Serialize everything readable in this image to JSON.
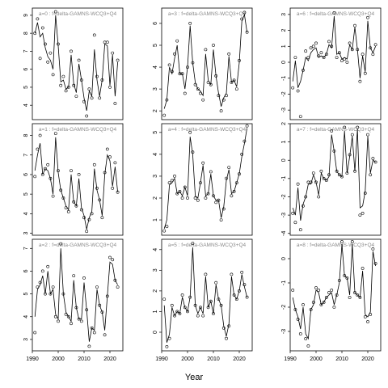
{
  "chart_data": {
    "type": "line",
    "xlabel": "Year",
    "x_ticks": [
      1990,
      2000,
      2010,
      2020
    ],
    "xlim": [
      1990,
      2025
    ],
    "panels": [
      {
        "title": "a=0  :  f=delta-GAMNS-WCQ3+Q4",
        "ylim": [
          3.2,
          9.4
        ],
        "y_ticks": [
          4,
          5,
          6,
          7,
          8,
          9
        ],
        "x": [
          1991,
          1992,
          1993,
          1994,
          1995,
          1996,
          1997,
          1998,
          1999,
          2000,
          2001,
          2002,
          2003,
          2004,
          2005,
          2006,
          2007,
          2008,
          2009,
          2010,
          2011,
          2012,
          2013,
          2014,
          2015,
          2016,
          2017,
          2018,
          2019,
          2020,
          2021,
          2022,
          2023
        ],
        "points": [
          8.0,
          8.8,
          6.6,
          8.3,
          7.4,
          6.4,
          6.9,
          5.7,
          9.2,
          7.4,
          5.1,
          5.6,
          4.8,
          5.0,
          7.0,
          5.1,
          4.5,
          6.5,
          5.4,
          4.2,
          3.4,
          4.9,
          4.4,
          7.9,
          5.6,
          4.4,
          5.4,
          7.5,
          7.5,
          5.0,
          6.9,
          4.1,
          6.5
        ],
        "curve": [
          8.0,
          8.6,
          7.8,
          8.0,
          7.2,
          6.7,
          6.5,
          6.0,
          9.0,
          7.3,
          5.3,
          5.4,
          4.9,
          5.0,
          6.8,
          5.2,
          4.7,
          6.3,
          5.4,
          4.4,
          3.7,
          4.8,
          4.5,
          7.1,
          5.4,
          4.5,
          5.4,
          7.4,
          7.3,
          5.1,
          6.8,
          4.5,
          6.4
        ]
      },
      {
        "title": "a=3  :  f=delta-GAMNS-WCQ3+Q4",
        "ylim": [
          1.6,
          6.7
        ],
        "y_ticks": [
          2,
          3,
          4,
          5,
          6
        ],
        "x": [
          1991,
          1992,
          1993,
          1994,
          1995,
          1996,
          1997,
          1998,
          1999,
          2000,
          2001,
          2002,
          2003,
          2004,
          2005,
          2006,
          2007,
          2008,
          2009,
          2010,
          2011,
          2012,
          2013,
          2014,
          2015,
          2016,
          2017,
          2018,
          2019,
          2020,
          2021,
          2022,
          2023
        ],
        "points": [
          1.8,
          2.5,
          4.1,
          3.8,
          4.6,
          5.2,
          3.7,
          3.7,
          2.8,
          4.0,
          6.0,
          4.2,
          3.2,
          3.0,
          2.8,
          2.5,
          4.8,
          3.3,
          3.2,
          5.0,
          3.6,
          2.7,
          2.0,
          2.5,
          2.7,
          4.6,
          3.3,
          3.4,
          3.0,
          4.3,
          6.2,
          6.5,
          5.6
        ],
        "curve": [
          2.1,
          2.5,
          4.0,
          3.7,
          4.4,
          5.0,
          3.7,
          3.7,
          3.0,
          4.0,
          5.9,
          4.2,
          3.3,
          3.0,
          2.9,
          2.7,
          4.6,
          3.4,
          3.2,
          4.8,
          3.6,
          2.8,
          2.2,
          2.6,
          2.8,
          4.5,
          3.3,
          3.4,
          3.1,
          4.2,
          6.1,
          6.4,
          5.6
        ]
      },
      {
        "title": "a=6  :  f=delta-GAMNS-WCQ3+Q4",
        "ylim": [
          -3.6,
          3.4
        ],
        "y_ticks": [
          -3,
          -2,
          -1,
          0,
          1,
          2,
          3
        ],
        "x": [
          1991,
          1992,
          1993,
          1994,
          1995,
          1996,
          1997,
          1998,
          1999,
          2000,
          2001,
          2002,
          2003,
          2004,
          2005,
          2006,
          2007,
          2008,
          2009,
          2010,
          2011,
          2012,
          2013,
          2014,
          2015,
          2016,
          2017,
          2018,
          2019,
          2020,
          2021,
          2022,
          2023
        ],
        "points": [
          -1.6,
          0.3,
          -1.8,
          -3.4,
          -0.5,
          0.7,
          0.3,
          0.9,
          1.0,
          1.2,
          0.4,
          0.6,
          0.3,
          0.5,
          1.3,
          1.0,
          3.1,
          0.3,
          0.6,
          0.1,
          0.2,
          0.0,
          1.2,
          0.8,
          2.3,
          0.8,
          -1.2,
          0.5,
          -0.7,
          2.8,
          0.9,
          0.5,
          1.1
        ],
        "curve": [
          -1.2,
          0.1,
          -1.6,
          -1.2,
          -0.5,
          0.3,
          0.1,
          0.6,
          0.8,
          0.9,
          0.3,
          0.4,
          0.3,
          0.5,
          1.1,
          0.9,
          2.9,
          0.5,
          0.6,
          0.2,
          0.3,
          0.2,
          1.1,
          0.8,
          2.2,
          0.8,
          -1.0,
          0.4,
          -0.6,
          2.6,
          0.9,
          0.6,
          1.0
        ]
      },
      {
        "title": "a=1  :  f=delta-GAMNS-WCQ3+Q4",
        "ylim": [
          2.9,
          8.6
        ],
        "y_ticks": [
          3,
          4,
          5,
          6,
          7,
          8
        ],
        "x": [
          1991,
          1992,
          1993,
          1994,
          1995,
          1996,
          1997,
          1998,
          1999,
          2000,
          2001,
          2002,
          2003,
          2004,
          2005,
          2006,
          2007,
          2008,
          2009,
          2010,
          2011,
          2012,
          2013,
          2014,
          2015,
          2016,
          2017,
          2018,
          2019,
          2020,
          2021,
          2022,
          2023
        ],
        "points": [
          5.9,
          7.3,
          8.0,
          6.0,
          6.3,
          6.5,
          5.8,
          4.9,
          8.1,
          6.2,
          5.2,
          4.8,
          4.3,
          4.1,
          6.2,
          4.6,
          4.4,
          6.0,
          4.2,
          3.8,
          3.1,
          3.7,
          4.0,
          6.5,
          5.3,
          4.7,
          3.8,
          6.1,
          7.3,
          6.9,
          5.3,
          6.6,
          5.1
        ],
        "curve": [
          6.2,
          7.0,
          7.6,
          6.0,
          6.3,
          6.2,
          5.8,
          5.0,
          7.9,
          6.1,
          5.2,
          4.8,
          4.4,
          4.2,
          6.0,
          4.6,
          4.4,
          5.8,
          4.3,
          3.9,
          3.2,
          3.8,
          4.1,
          6.3,
          5.2,
          4.7,
          3.9,
          6.0,
          7.0,
          6.7,
          5.4,
          6.4,
          5.1
        ]
      },
      {
        "title": "a=4  :  f=delta-GAMNS-WCQ3+Q4",
        "ylim": [
          0.3,
          5.4
        ],
        "y_ticks": [
          1,
          2,
          3,
          4,
          5
        ],
        "x": [
          1991,
          1992,
          1993,
          1994,
          1995,
          1996,
          1997,
          1998,
          1999,
          2000,
          2001,
          2002,
          2003,
          2004,
          2005,
          2006,
          2007,
          2008,
          2009,
          2010,
          2011,
          2012,
          2013,
          2014,
          2015,
          2016,
          2017,
          2018,
          2019,
          2020,
          2021,
          2022,
          2023
        ],
        "points": [
          0.5,
          0.7,
          2.7,
          2.8,
          3.0,
          2.2,
          2.3,
          2.0,
          2.5,
          2.0,
          5.0,
          4.1,
          2.0,
          1.9,
          2.7,
          3.6,
          2.0,
          2.2,
          3.2,
          2.1,
          1.8,
          1.9,
          1.0,
          1.5,
          2.9,
          3.4,
          2.1,
          2.3,
          2.7,
          3.1,
          4.0,
          4.6,
          5.3
        ],
        "curve": [
          0.6,
          1.0,
          2.6,
          2.7,
          2.9,
          2.2,
          2.3,
          2.1,
          2.5,
          2.1,
          4.8,
          4.0,
          2.1,
          2.0,
          2.7,
          3.5,
          2.1,
          2.2,
          3.1,
          2.1,
          1.9,
          1.9,
          1.1,
          1.6,
          2.8,
          3.3,
          2.2,
          2.3,
          2.7,
          3.1,
          3.9,
          4.5,
          5.2
        ]
      },
      {
        "title": "a=7  :  f=delta-GAMNS-WCQ3+Q4",
        "ylim": [
          -4.1,
          2.0
        ],
        "y_ticks": [
          -4,
          -3,
          -2,
          -1,
          0,
          1,
          2
        ],
        "x": [
          1991,
          1992,
          1993,
          1994,
          1995,
          1996,
          1997,
          1998,
          1999,
          2000,
          2001,
          2002,
          2003,
          2004,
          2005,
          2006,
          2007,
          2008,
          2009,
          2010,
          2011,
          2012,
          2013,
          2014,
          2015,
          2016,
          2017,
          2018,
          2019,
          2020,
          2021,
          2022,
          2023
        ],
        "points": [
          -2.9,
          -3.4,
          -1.3,
          -3.8,
          -2.5,
          -2.0,
          -1.2,
          -1.2,
          -0.7,
          -1.2,
          -2.0,
          -0.6,
          -1.0,
          -1.1,
          -0.8,
          1.6,
          0.5,
          -0.6,
          -0.8,
          -0.9,
          1.8,
          -0.7,
          0.3,
          1.4,
          -0.6,
          1.8,
          -3.0,
          -2.9,
          -1.8,
          1.4,
          -0.8,
          0.1,
          -0.1
        ],
        "curve": [
          -2.6,
          -3.0,
          -1.5,
          -3.3,
          -2.4,
          -2.0,
          -1.3,
          -1.3,
          -0.8,
          -1.2,
          -1.9,
          -0.7,
          -1.0,
          -1.1,
          -0.9,
          1.4,
          0.5,
          -0.6,
          -0.8,
          -0.9,
          1.6,
          -0.7,
          0.2,
          1.3,
          -0.6,
          1.7,
          -2.6,
          -2.5,
          -1.7,
          1.3,
          -0.7,
          0.0,
          -0.1
        ]
      },
      {
        "title": "a=2  :  f=delta-GAMNS-WCQ3+Q4",
        "ylim": [
          2.5,
          7.4
        ],
        "y_ticks": [
          3,
          4,
          5,
          6,
          7
        ],
        "x": [
          1991,
          1992,
          1993,
          1994,
          1995,
          1996,
          1997,
          1998,
          1999,
          2000,
          2001,
          2002,
          2003,
          2004,
          2005,
          2006,
          2007,
          2008,
          2009,
          2010,
          2011,
          2012,
          2013,
          2014,
          2015,
          2016,
          2017,
          2018,
          2019,
          2020,
          2021,
          2022,
          2023
        ],
        "points": [
          3.3,
          5.3,
          5.5,
          6.0,
          5.0,
          6.2,
          5.0,
          5.3,
          4.0,
          3.8,
          7.2,
          5.0,
          4.1,
          4.0,
          3.7,
          5.8,
          4.4,
          3.9,
          3.8,
          5.7,
          4.3,
          2.7,
          3.5,
          3.3,
          5.3,
          4.5,
          4.2,
          3.2,
          4.9,
          6.6,
          6.5,
          5.6,
          5.3
        ],
        "curve": [
          4.0,
          5.2,
          5.4,
          5.8,
          5.0,
          6.0,
          5.0,
          5.2,
          4.1,
          3.9,
          7.0,
          5.0,
          4.2,
          4.0,
          3.8,
          5.6,
          4.4,
          3.9,
          3.9,
          5.5,
          4.3,
          2.9,
          3.5,
          3.4,
          5.2,
          4.5,
          4.2,
          3.4,
          4.9,
          6.4,
          6.3,
          5.6,
          5.4
        ]
      },
      {
        "title": "a=5  :  f=delta-GAMNS-WCQ3+Q4",
        "ylim": [
          -0.9,
          4.5
        ],
        "y_ticks": [
          0,
          1,
          2,
          3,
          4
        ],
        "x": [
          1991,
          1992,
          1993,
          1994,
          1995,
          1996,
          1997,
          1998,
          1999,
          2000,
          2001,
          2002,
          2003,
          2004,
          2005,
          2006,
          2007,
          2008,
          2009,
          2010,
          2011,
          2012,
          2013,
          2014,
          2015,
          2016,
          2017,
          2018,
          2019,
          2020,
          2021,
          2022,
          2023
        ],
        "points": [
          1.6,
          -0.7,
          -0.3,
          1.3,
          0.8,
          1.0,
          0.9,
          1.8,
          1.2,
          1.0,
          1.7,
          4.3,
          1.3,
          0.8,
          1.2,
          0.8,
          2.8,
          1.2,
          1.5,
          0.9,
          2.4,
          1.6,
          1.3,
          0.2,
          -0.3,
          0.3,
          2.8,
          1.8,
          1.6,
          2.0,
          2.9,
          2.3,
          1.7
        ],
        "curve": [
          1.3,
          -0.5,
          -0.1,
          1.2,
          0.8,
          1.0,
          0.9,
          1.7,
          1.2,
          1.0,
          1.7,
          4.1,
          1.3,
          0.9,
          1.2,
          0.9,
          2.7,
          1.2,
          1.5,
          0.9,
          2.3,
          1.6,
          1.3,
          0.3,
          -0.2,
          0.4,
          2.7,
          1.8,
          1.6,
          2.0,
          2.8,
          2.2,
          1.7
        ]
      },
      {
        "title": "a=8  :  f=delta-GAMNS-WCQ3+Q4",
        "ylim": [
          -3.8,
          0.8
        ],
        "y_ticks": [
          -3,
          -2,
          -1,
          0
        ],
        "x": [
          1991,
          1992,
          1993,
          1994,
          1995,
          1996,
          1997,
          1998,
          1999,
          2000,
          2001,
          2002,
          2003,
          2004,
          2005,
          2006,
          2007,
          2008,
          2009,
          2010,
          2011,
          2012,
          2013,
          2014,
          2015,
          2016,
          2017,
          2018,
          2019,
          2020,
          2021,
          2022,
          2023
        ],
        "points": [
          -1.3,
          -2.1,
          -2.5,
          -3.1,
          -1.9,
          -3.3,
          -3.6,
          -2.1,
          -1.8,
          -1.2,
          -1.3,
          -1.9,
          -1.8,
          -1.6,
          -1.4,
          -1.3,
          -2.0,
          -1.5,
          -0.9,
          0.7,
          -0.7,
          -0.8,
          -1.6,
          0.7,
          -1.4,
          -1.5,
          -1.6,
          -0.4,
          -2.4,
          -2.6,
          -2.3,
          0.4,
          -0.2
        ],
        "curve": [
          -1.6,
          -2.1,
          -2.4,
          -2.9,
          -2.0,
          -3.1,
          -3.3,
          -2.1,
          -1.9,
          -1.3,
          -1.4,
          -1.9,
          -1.8,
          -1.6,
          -1.5,
          -1.4,
          -1.9,
          -1.5,
          -1.0,
          0.6,
          -0.7,
          -0.8,
          -1.5,
          0.6,
          -1.4,
          -1.5,
          -1.6,
          -0.5,
          -2.3,
          -2.4,
          -2.2,
          0.3,
          -0.3
        ]
      }
    ]
  }
}
